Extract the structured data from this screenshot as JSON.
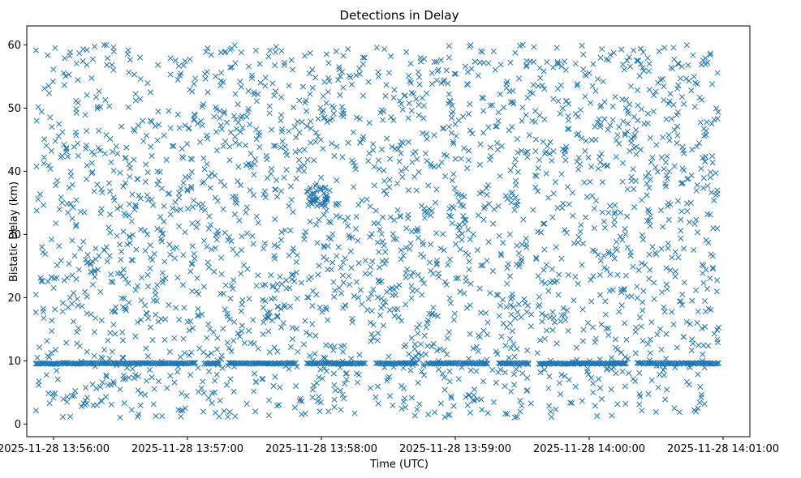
{
  "chart_data": {
    "type": "scatter",
    "title": "Detections in Delay",
    "xlabel": "Time (UTC)",
    "ylabel": "Bistatic Delay (km)",
    "marker": "x",
    "color": "#1f77b4",
    "grid": false,
    "xlim": [
      "2025-11-28 13:55:48",
      "2025-11-28 14:01:12"
    ],
    "ylim": [
      -2.0,
      63.0
    ],
    "x_ticks": [
      "2025-11-28 13:56:00",
      "2025-11-28 13:57:00",
      "2025-11-28 13:58:00",
      "2025-11-28 13:59:00",
      "2025-11-28 14:00:00",
      "2025-11-28 14:01:00"
    ],
    "y_ticks": [
      0,
      10,
      20,
      30,
      40,
      50,
      60
    ],
    "data_window": [
      "2025-11-28 13:55:52",
      "2025-11-28 14:00:58"
    ],
    "data_description": "Approximately 3000 detections spread uniformly over 1–60 km across the window, with a dense horizontal band of detections at about 9.6 km.",
    "band_delay_km": 9.6,
    "band_gap_seconds": [
      [
        72,
        75
      ],
      [
        82,
        86
      ],
      [
        117,
        121
      ],
      [
        148,
        152
      ],
      [
        171,
        175
      ],
      [
        203,
        207
      ],
      [
        221,
        225
      ],
      [
        265,
        269
      ]
    ],
    "cluster": {
      "center_time": "2025-11-28 13:57:58",
      "center_delay_km": 36
    }
  }
}
